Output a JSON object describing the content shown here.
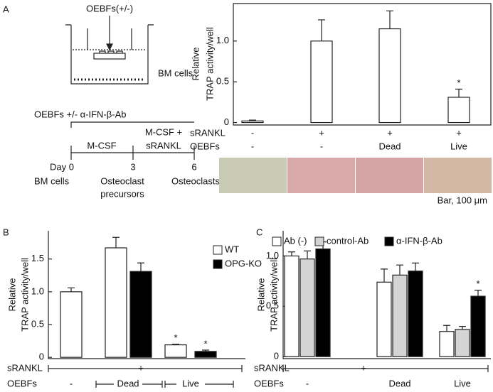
{
  "panel_labels": [
    "A",
    "B",
    "C"
  ],
  "diagram": {
    "top_label": "OEBFs(+/-)",
    "well_label": "BM cells",
    "treatment": "OEBFs +/- α-IFN-β-Ab",
    "phase1": "M-CSF",
    "phase2_line1": "M-CSF +",
    "phase2_line2": "sRANKL",
    "day_label": "Day 0",
    "day3": "3",
    "day6": "6",
    "stage1": "BM cells",
    "stage2_line1": "Osteoclast",
    "stage2_line2": "precursors",
    "stage3": "Osteoclasts"
  },
  "scale_bar": "Bar, 100 μm",
  "chart_data": [
    {
      "type": "bar",
      "y_label": [
        "Relative",
        "TRAP activity/well"
      ],
      "categories": [
        null,
        null,
        null,
        null
      ],
      "values": [
        0.02,
        1.0,
        1.15,
        0.31
      ],
      "errors": [
        0.01,
        0.26,
        0.22,
        0.1
      ],
      "significance": [
        null,
        null,
        null,
        "*"
      ],
      "color": "#ffffff",
      "rows": [
        {
          "label": "sRANKL",
          "values": [
            "-",
            "+",
            "+",
            "+"
          ]
        },
        {
          "label": "OEBFs",
          "values": [
            "-",
            "-",
            "Dead",
            "Live"
          ]
        }
      ],
      "ylim": [
        -0.03,
        1.46
      ],
      "yticks": [
        0,
        0.5,
        {
          "value": 1,
          "label": "1.0"
        }
      ]
    },
    {
      "type": "bar",
      "y_label": [
        "Relative",
        "TRAP activity/well"
      ],
      "categories": [
        "-",
        "Dead",
        "Live"
      ],
      "series": [
        {
          "name": "WT",
          "color": "#ffffff",
          "values": [
            1.0,
            1.67,
            0.19
          ],
          "errors": [
            0.06,
            0.16,
            0.01
          ],
          "significance": [
            null,
            null,
            "*"
          ]
        },
        {
          "name": "OPG-KO",
          "color": "#000000",
          "values": [
            null,
            1.31,
            0.09
          ],
          "errors": [
            null,
            0.13,
            0.02
          ],
          "significance": [
            null,
            null,
            "*"
          ]
        }
      ],
      "rows": [
        {
          "label": "sRANKL",
          "values": [
            "+"
          ]
        },
        {
          "label": "OEBFs",
          "values": [
            "-",
            "Dead",
            "Live"
          ]
        }
      ],
      "ylim": [
        -0.02,
        1.93
      ],
      "yticks": [
        0,
        0.5,
        {
          "value": 1,
          "label": "1.0"
        },
        1.5
      ]
    },
    {
      "type": "bar",
      "y_label": [
        "Relative",
        "TRAP activity/well"
      ],
      "categories": [
        "-",
        "Dead",
        "Live"
      ],
      "series": [
        {
          "name": "Ab (-)",
          "color": "#ffffff",
          "values": [
            1.0,
            0.74,
            0.25
          ],
          "errors": [
            0.04,
            0.13,
            0.06
          ],
          "significance": [
            null,
            null,
            null
          ]
        },
        {
          "name": "control-Ab",
          "color": "#d4d4d4",
          "values": [
            0.97,
            0.81,
            0.27
          ],
          "errors": [
            0.08,
            0.1,
            0.03
          ],
          "significance": [
            null,
            null,
            null
          ]
        },
        {
          "name": "α-IFN-β-Ab",
          "color": "#000000",
          "values": [
            1.07,
            0.85,
            0.6
          ],
          "errors": [
            0.07,
            0.08,
            0.06
          ],
          "significance": [
            null,
            null,
            "*"
          ]
        }
      ],
      "rows": [
        {
          "label": "sRANKL",
          "values": [
            "+"
          ]
        },
        {
          "label": "OEBFs",
          "values": [
            "-",
            "Dead",
            "Live"
          ]
        }
      ],
      "ylim": [
        -0.02,
        1.25
      ],
      "yticks": [
        0,
        0.5,
        {
          "value": 1,
          "label": "1.0"
        }
      ]
    }
  ]
}
